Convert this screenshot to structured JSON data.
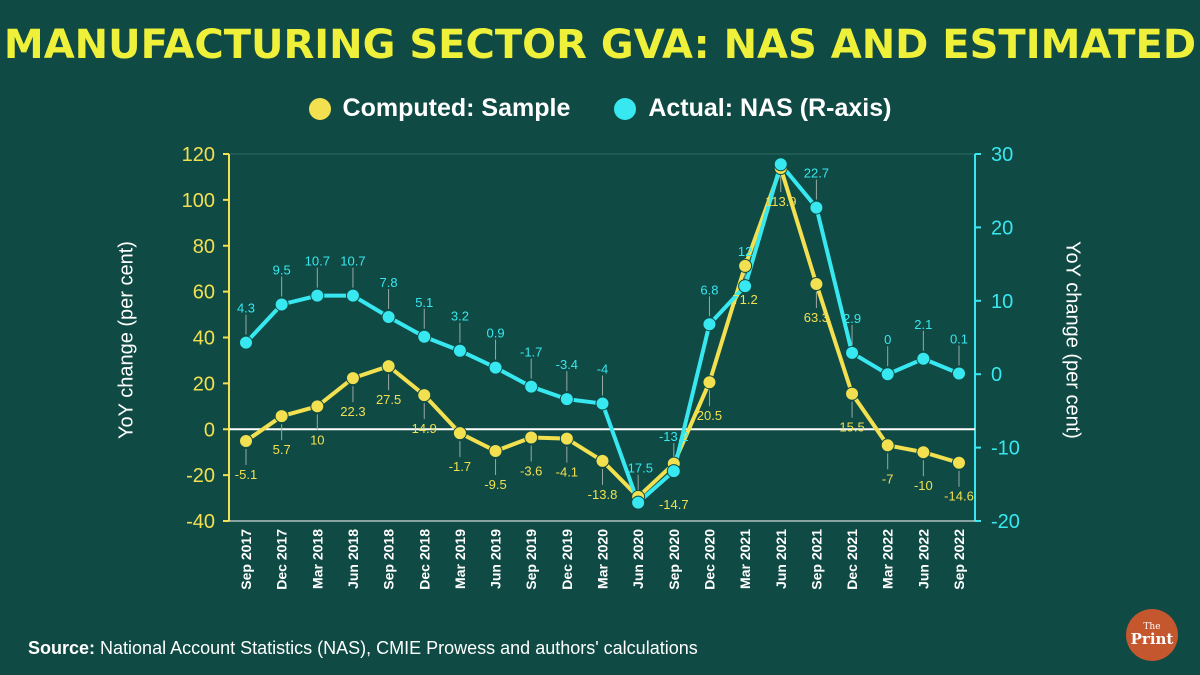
{
  "title": "MANUFACTURING SECTOR GVA: NAS AND ESTIMATED",
  "legend": [
    {
      "label": "Computed: Sample",
      "color": "#f2e050"
    },
    {
      "label": "Actual: NAS (R-axis)",
      "color": "#38e8f0"
    }
  ],
  "source": {
    "prefix": "Source:",
    "text": " National Account Statistics (NAS), CMIE Prowess and authors' calculations"
  },
  "logo": {
    "line1": "The",
    "line2": "Print"
  },
  "chart_data": {
    "type": "line",
    "title": "MANUFACTURING SECTOR GVA: NAS AND ESTIMATED",
    "xlabel": "",
    "ylabel": "YoY change (per cent)",
    "y2label": "YoY change (per cent)",
    "ylim": [
      -40,
      120
    ],
    "y2lim": [
      -20,
      30
    ],
    "yticks": [
      120,
      100,
      80,
      60,
      40,
      20,
      0,
      -20,
      -40
    ],
    "y2ticks": [
      30,
      20,
      10,
      0,
      -10,
      -20
    ],
    "grid": false,
    "legend_position": "top-center",
    "categories": [
      "Sep 2017",
      "Dec 2017",
      "Mar 2018",
      "Jun 2018",
      "Sep 2018",
      "Dec 2018",
      "Mar 2019",
      "Jun 2019",
      "Sep 2019",
      "Dec 2019",
      "Mar 2020",
      "Jun 2020",
      "Sep 2020",
      "Dec 2020",
      "Mar 2021",
      "Jun 2021",
      "Sep 2021",
      "Dec 2021",
      "Mar 2022",
      "Jun 2022",
      "Sep 2022"
    ],
    "series": [
      {
        "name": "Computed: Sample",
        "axis": "left",
        "color": "#f2e050",
        "values": [
          -5.1,
          5.7,
          10,
          22.3,
          27.5,
          14.9,
          -1.7,
          -9.5,
          -3.6,
          -4.1,
          -13.8,
          -29.5,
          -15.0,
          20.5,
          71.2,
          113.9,
          63.3,
          15.5,
          -7,
          -10,
          -14.6
        ],
        "labels": [
          "-5.1",
          "5.7",
          "10",
          "22.3",
          "27.5",
          "14.9",
          "-1.7",
          "-9.5",
          "-3.6",
          "-4.1",
          "-13.8",
          "",
          "",
          "20.5",
          "71.2",
          "113.9",
          "63.3",
          "15.5",
          "-7",
          "-10",
          "-14.6"
        ]
      },
      {
        "name": "Actual: NAS (R-axis)",
        "axis": "right",
        "color": "#38e8f0",
        "values": [
          4.3,
          9.5,
          10.7,
          10.7,
          7.8,
          5.1,
          3.2,
          0.9,
          -1.7,
          -3.4,
          -4,
          -17.5,
          -13.2,
          6.8,
          12,
          28.6,
          22.7,
          2.9,
          0,
          2.1,
          0.1
        ],
        "labels": [
          "4.3",
          "9.5",
          "10.7",
          "10.7",
          "7.8",
          "5.1",
          "3.2",
          "0.9",
          "-1.7",
          "-3.4",
          "-4",
          "-17.5",
          "-13.2",
          "6.8",
          "12",
          "",
          "22.7",
          "2.9",
          "0",
          "2.1",
          "0.1"
        ]
      }
    ],
    "secondary_labels": [
      "-14.7"
    ]
  }
}
